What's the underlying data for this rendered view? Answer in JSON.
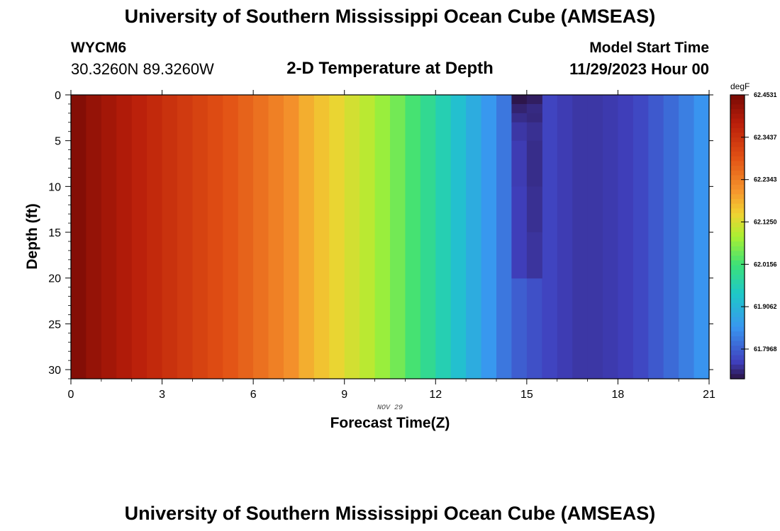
{
  "header": {
    "main_title": "University of Southern Mississippi Ocean Cube (AMSEAS)",
    "station": "WYCM6",
    "coordinates": "30.3260N  89.3260W",
    "subtitle": "2-D Temperature at Depth",
    "model_start_label": "Model Start Time",
    "model_start_value": "11/29/2023 Hour 00",
    "footer_title": "University of Southern Mississippi Ocean Cube (AMSEAS)"
  },
  "chart_data": {
    "type": "heatmap",
    "title": "2-D Temperature at Depth",
    "xlabel": "Forecast Time(Z)",
    "ylabel": "Depth (ft)",
    "date_label": "NOV 29",
    "xlim": [
      0,
      21
    ],
    "ylim": [
      0,
      31
    ],
    "y_inverted": true,
    "x_ticks": [
      0,
      3,
      6,
      9,
      12,
      15,
      18,
      21
    ],
    "y_ticks": [
      0,
      5,
      10,
      15,
      20,
      25,
      30
    ],
    "colorbar": {
      "units": "degF",
      "tick_labels": [
        "62.4531",
        "62.3437",
        "62.2343",
        "62.1250",
        "62.0156",
        "61.9062",
        "61.7968"
      ],
      "tick_values": [
        62.4531,
        62.3437,
        62.2343,
        62.125,
        62.0156,
        61.9062,
        61.7968
      ],
      "range": [
        61.72,
        62.4531
      ]
    },
    "column_hour_step": 0.5,
    "column_values": [
      62.44,
      62.42,
      62.405,
      62.39,
      62.375,
      62.36,
      62.345,
      62.33,
      62.315,
      62.3,
      62.285,
      62.268,
      62.25,
      62.232,
      62.212,
      62.18,
      62.16,
      62.14,
      62.12,
      62.1,
      62.075,
      62.05,
      62.02,
      61.99,
      61.96,
      61.925,
      61.89,
      61.855,
      61.82,
      61.795,
      61.78,
      61.768,
      61.76,
      61.755,
      61.755,
      61.758,
      61.762,
      61.772,
      61.79,
      61.808,
      61.828,
      61.85,
      61.872,
      61.895
    ],
    "cold_anomaly": {
      "hours": [
        14.5,
        15.0
      ],
      "depth_values": [
        {
          "depth": 0,
          "values": [
            61.722,
            61.73
          ]
        },
        {
          "depth": 1,
          "values": [
            61.735,
            61.742
          ]
        },
        {
          "depth": 2,
          "values": [
            61.745,
            61.74
          ]
        },
        {
          "depth": 3,
          "values": [
            61.755,
            61.748
          ]
        },
        {
          "depth": 5,
          "values": [
            61.76,
            61.745
          ]
        },
        {
          "depth": 10,
          "values": [
            61.762,
            61.748
          ]
        },
        {
          "depth": 15,
          "values": [
            61.762,
            61.752
          ]
        }
      ]
    }
  }
}
